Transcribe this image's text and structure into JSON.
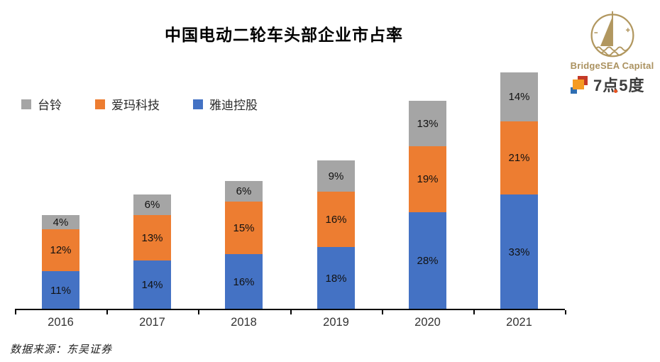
{
  "title": "中国电动二轮车头部企业市占率",
  "logo": {
    "brand": "BridgeSEA Capital",
    "sub_brand": "7点5度",
    "gold": "#ab9260",
    "icon_colors": {
      "red": "#c43a28",
      "orange": "#f59b22",
      "blue": "#2f6eb2"
    }
  },
  "legend": [
    {
      "label": "台铃",
      "color": "#a5a5a5"
    },
    {
      "label": "爱玛科技",
      "color": "#ed7d31"
    },
    {
      "label": "雅迪控股",
      "color": "#4472c4"
    }
  ],
  "source": "数据来源：东吴证券",
  "chart_data": {
    "type": "bar",
    "stacked": true,
    "title": "中国电动二轮车头部企业市占率",
    "categories": [
      "2016",
      "2017",
      "2018",
      "2019",
      "2020",
      "2021"
    ],
    "series": [
      {
        "name": "雅迪控股",
        "color": "#4472c4",
        "values": [
          11,
          14,
          16,
          18,
          28,
          33
        ]
      },
      {
        "name": "爱玛科技",
        "color": "#ed7d31",
        "values": [
          12,
          13,
          15,
          16,
          19,
          21
        ]
      },
      {
        "name": "台铃",
        "color": "#a5a5a5",
        "values": [
          4,
          6,
          6,
          9,
          13,
          14
        ]
      }
    ],
    "unit": "%",
    "value_labels": true,
    "xlabel": "",
    "ylabel": "",
    "grid": false,
    "legend_position": "top-left",
    "source": "数据来源：东吴证券"
  }
}
